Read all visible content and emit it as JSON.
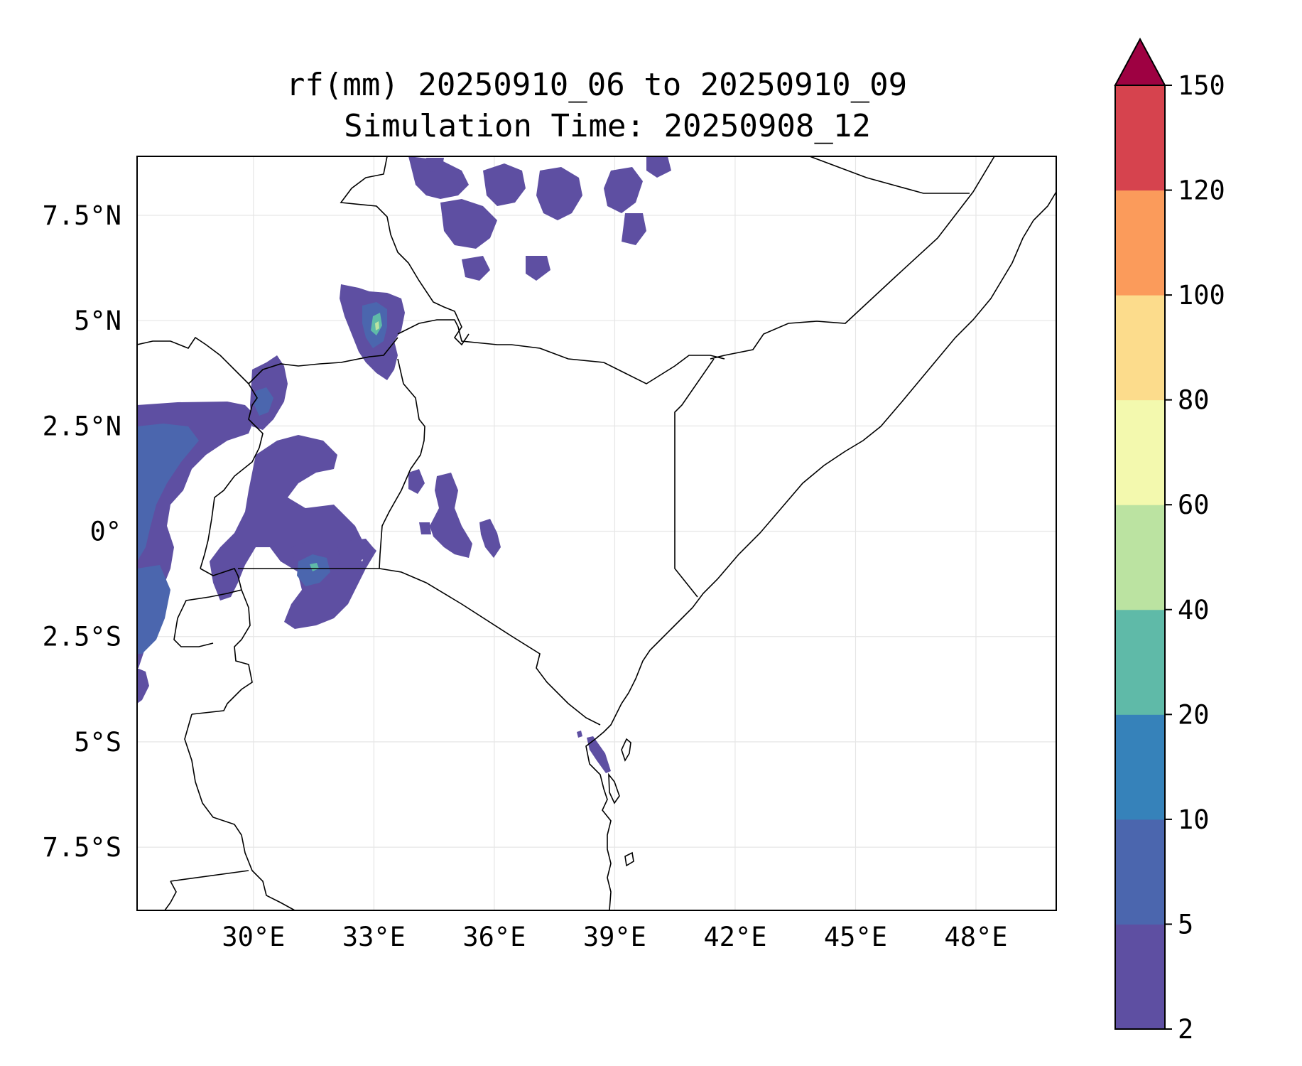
{
  "figure": {
    "title_line1": "rf(mm) 20250910_06 to 20250910_09",
    "title_line2": "Simulation Time: 20250908_12"
  },
  "map": {
    "lon_range": [
      27.1,
      50.0
    ],
    "lat_range": [
      -9.0,
      8.9
    ],
    "x_ticks": [
      {
        "value": 30,
        "label": "30°E"
      },
      {
        "value": 33,
        "label": "33°E"
      },
      {
        "value": 36,
        "label": "36°E"
      },
      {
        "value": 39,
        "label": "39°E"
      },
      {
        "value": 42,
        "label": "42°E"
      },
      {
        "value": 45,
        "label": "45°E"
      },
      {
        "value": 48,
        "label": "48°E"
      }
    ],
    "y_ticks": [
      {
        "value": 7.5,
        "label": "7.5°N"
      },
      {
        "value": 5,
        "label": "5°N"
      },
      {
        "value": 2.5,
        "label": "2.5°N"
      },
      {
        "value": 0,
        "label": "0°"
      },
      {
        "value": -2.5,
        "label": "2.5°S"
      },
      {
        "value": -5,
        "label": "5°S"
      },
      {
        "value": -7.5,
        "label": "7.5°S"
      }
    ]
  },
  "colorbar": {
    "levels": [
      2,
      5,
      10,
      20,
      40,
      60,
      80,
      100,
      120,
      150
    ],
    "labels": [
      "2",
      "5",
      "10",
      "20",
      "40",
      "60",
      "80",
      "100",
      "120",
      "150"
    ],
    "colors": [
      "#5e4fa2",
      "#4b66ae",
      "#3682ba",
      "#5fbaa8",
      "#bbe3a1",
      "#f3f9ae",
      "#fcdc8c",
      "#fb9b5b",
      "#d6434e"
    ],
    "extend_color": "#9e0142"
  }
}
